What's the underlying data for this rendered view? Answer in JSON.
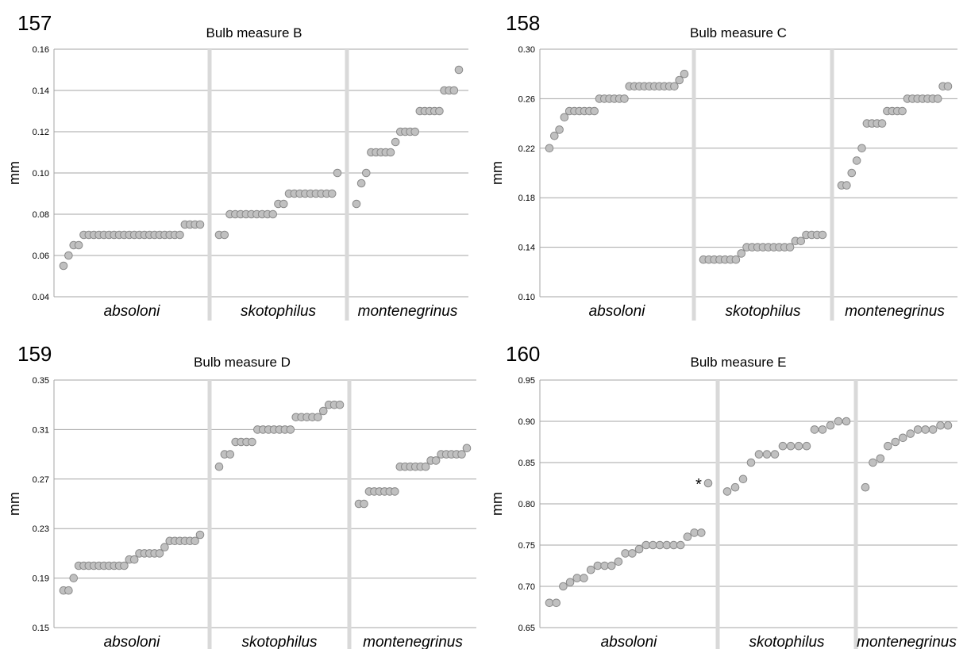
{
  "chart_data": [
    {
      "type": "scatter",
      "number": "157",
      "title": "Bulb measure B",
      "ylabel": "mm",
      "ylim": [
        0.04,
        0.16
      ],
      "yticks": [
        "0.04",
        "0.06",
        "0.08",
        "0.10",
        "0.12",
        "0.14",
        "0.16"
      ],
      "groups": [
        {
          "name": "absoloni",
          "values": [
            0.055,
            0.06,
            0.065,
            0.065,
            0.07,
            0.07,
            0.07,
            0.07,
            0.07,
            0.07,
            0.07,
            0.07,
            0.07,
            0.07,
            0.07,
            0.07,
            0.07,
            0.07,
            0.07,
            0.07,
            0.07,
            0.07,
            0.07,
            0.07,
            0.075,
            0.075,
            0.075,
            0.075
          ]
        },
        {
          "name": "skotophilus",
          "values": [
            0.07,
            0.07,
            0.08,
            0.08,
            0.08,
            0.08,
            0.08,
            0.08,
            0.08,
            0.08,
            0.08,
            0.085,
            0.085,
            0.09,
            0.09,
            0.09,
            0.09,
            0.09,
            0.09,
            0.09,
            0.09,
            0.09,
            0.1
          ]
        },
        {
          "name": "montenegrinus",
          "values": [
            0.085,
            0.095,
            0.1,
            0.11,
            0.11,
            0.11,
            0.11,
            0.11,
            0.115,
            0.12,
            0.12,
            0.12,
            0.12,
            0.13,
            0.13,
            0.13,
            0.13,
            0.13,
            0.14,
            0.14,
            0.14,
            0.15
          ]
        }
      ]
    },
    {
      "type": "scatter",
      "number": "158",
      "title": "Bulb measure C",
      "ylabel": "mm",
      "ylim": [
        0.1,
        0.3
      ],
      "yticks": [
        "0.10",
        "0.14",
        "0.18",
        "0.22",
        "0.26",
        "0.30"
      ],
      "groups": [
        {
          "name": "absoloni",
          "values": [
            0.22,
            0.23,
            0.235,
            0.245,
            0.25,
            0.25,
            0.25,
            0.25,
            0.25,
            0.25,
            0.26,
            0.26,
            0.26,
            0.26,
            0.26,
            0.26,
            0.27,
            0.27,
            0.27,
            0.27,
            0.27,
            0.27,
            0.27,
            0.27,
            0.27,
            0.27,
            0.275,
            0.28
          ]
        },
        {
          "name": "skotophilus",
          "values": [
            0.13,
            0.13,
            0.13,
            0.13,
            0.13,
            0.13,
            0.13,
            0.135,
            0.14,
            0.14,
            0.14,
            0.14,
            0.14,
            0.14,
            0.14,
            0.14,
            0.14,
            0.145,
            0.145,
            0.15,
            0.15,
            0.15,
            0.15
          ]
        },
        {
          "name": "montenegrinus",
          "values": [
            0.19,
            0.19,
            0.2,
            0.21,
            0.22,
            0.24,
            0.24,
            0.24,
            0.24,
            0.25,
            0.25,
            0.25,
            0.25,
            0.26,
            0.26,
            0.26,
            0.26,
            0.26,
            0.26,
            0.26,
            0.27,
            0.27
          ]
        }
      ]
    },
    {
      "type": "scatter",
      "number": "159",
      "title": "Bulb measure D",
      "ylabel": "mm",
      "ylim": [
        0.15,
        0.35
      ],
      "yticks": [
        "0.15",
        "0.19",
        "0.23",
        "0.27",
        "0.31",
        "0.35"
      ],
      "groups": [
        {
          "name": "absoloni",
          "values": [
            0.18,
            0.18,
            0.19,
            0.2,
            0.2,
            0.2,
            0.2,
            0.2,
            0.2,
            0.2,
            0.2,
            0.2,
            0.2,
            0.205,
            0.205,
            0.21,
            0.21,
            0.21,
            0.21,
            0.21,
            0.215,
            0.22,
            0.22,
            0.22,
            0.22,
            0.22,
            0.22,
            0.225
          ]
        },
        {
          "name": "skotophilus",
          "values": [
            0.28,
            0.29,
            0.29,
            0.3,
            0.3,
            0.3,
            0.3,
            0.31,
            0.31,
            0.31,
            0.31,
            0.31,
            0.31,
            0.31,
            0.32,
            0.32,
            0.32,
            0.32,
            0.32,
            0.325,
            0.33,
            0.33,
            0.33
          ]
        },
        {
          "name": "montenegrinus",
          "values": [
            0.25,
            0.25,
            0.26,
            0.26,
            0.26,
            0.26,
            0.26,
            0.26,
            0.28,
            0.28,
            0.28,
            0.28,
            0.28,
            0.28,
            0.285,
            0.285,
            0.29,
            0.29,
            0.29,
            0.29,
            0.29,
            0.295
          ]
        }
      ]
    },
    {
      "type": "scatter",
      "number": "160",
      "title": "Bulb measure E",
      "ylabel": "mm",
      "ylim": [
        0.65,
        0.95
      ],
      "yticks": [
        "0.65",
        "0.70",
        "0.75",
        "0.80",
        "0.85",
        "0.90",
        "0.95"
      ],
      "annotation": "*",
      "groups": [
        {
          "name": "absoloni",
          "values": [
            0.68,
            0.68,
            0.7,
            0.705,
            0.71,
            0.71,
            0.72,
            0.725,
            0.725,
            0.725,
            0.73,
            0.74,
            0.74,
            0.745,
            0.75,
            0.75,
            0.75,
            0.75,
            0.75,
            0.75,
            0.76,
            0.765,
            0.765,
            0.825
          ]
        },
        {
          "name": "skotophilus",
          "values": [
            0.815,
            0.82,
            0.83,
            0.85,
            0.86,
            0.86,
            0.86,
            0.87,
            0.87,
            0.87,
            0.87,
            0.89,
            0.89,
            0.895,
            0.9,
            0.9
          ]
        },
        {
          "name": "montenegrinus",
          "values": [
            0.82,
            0.85,
            0.855,
            0.87,
            0.875,
            0.88,
            0.885,
            0.89,
            0.89,
            0.89,
            0.895,
            0.895
          ]
        }
      ]
    }
  ],
  "colors": {
    "marker_fill": "#c0c0c0",
    "marker_stroke": "#8a8a8a",
    "gridline": "#a6a6a6",
    "group_divider": "#d9d9d9",
    "text": "#000000"
  }
}
